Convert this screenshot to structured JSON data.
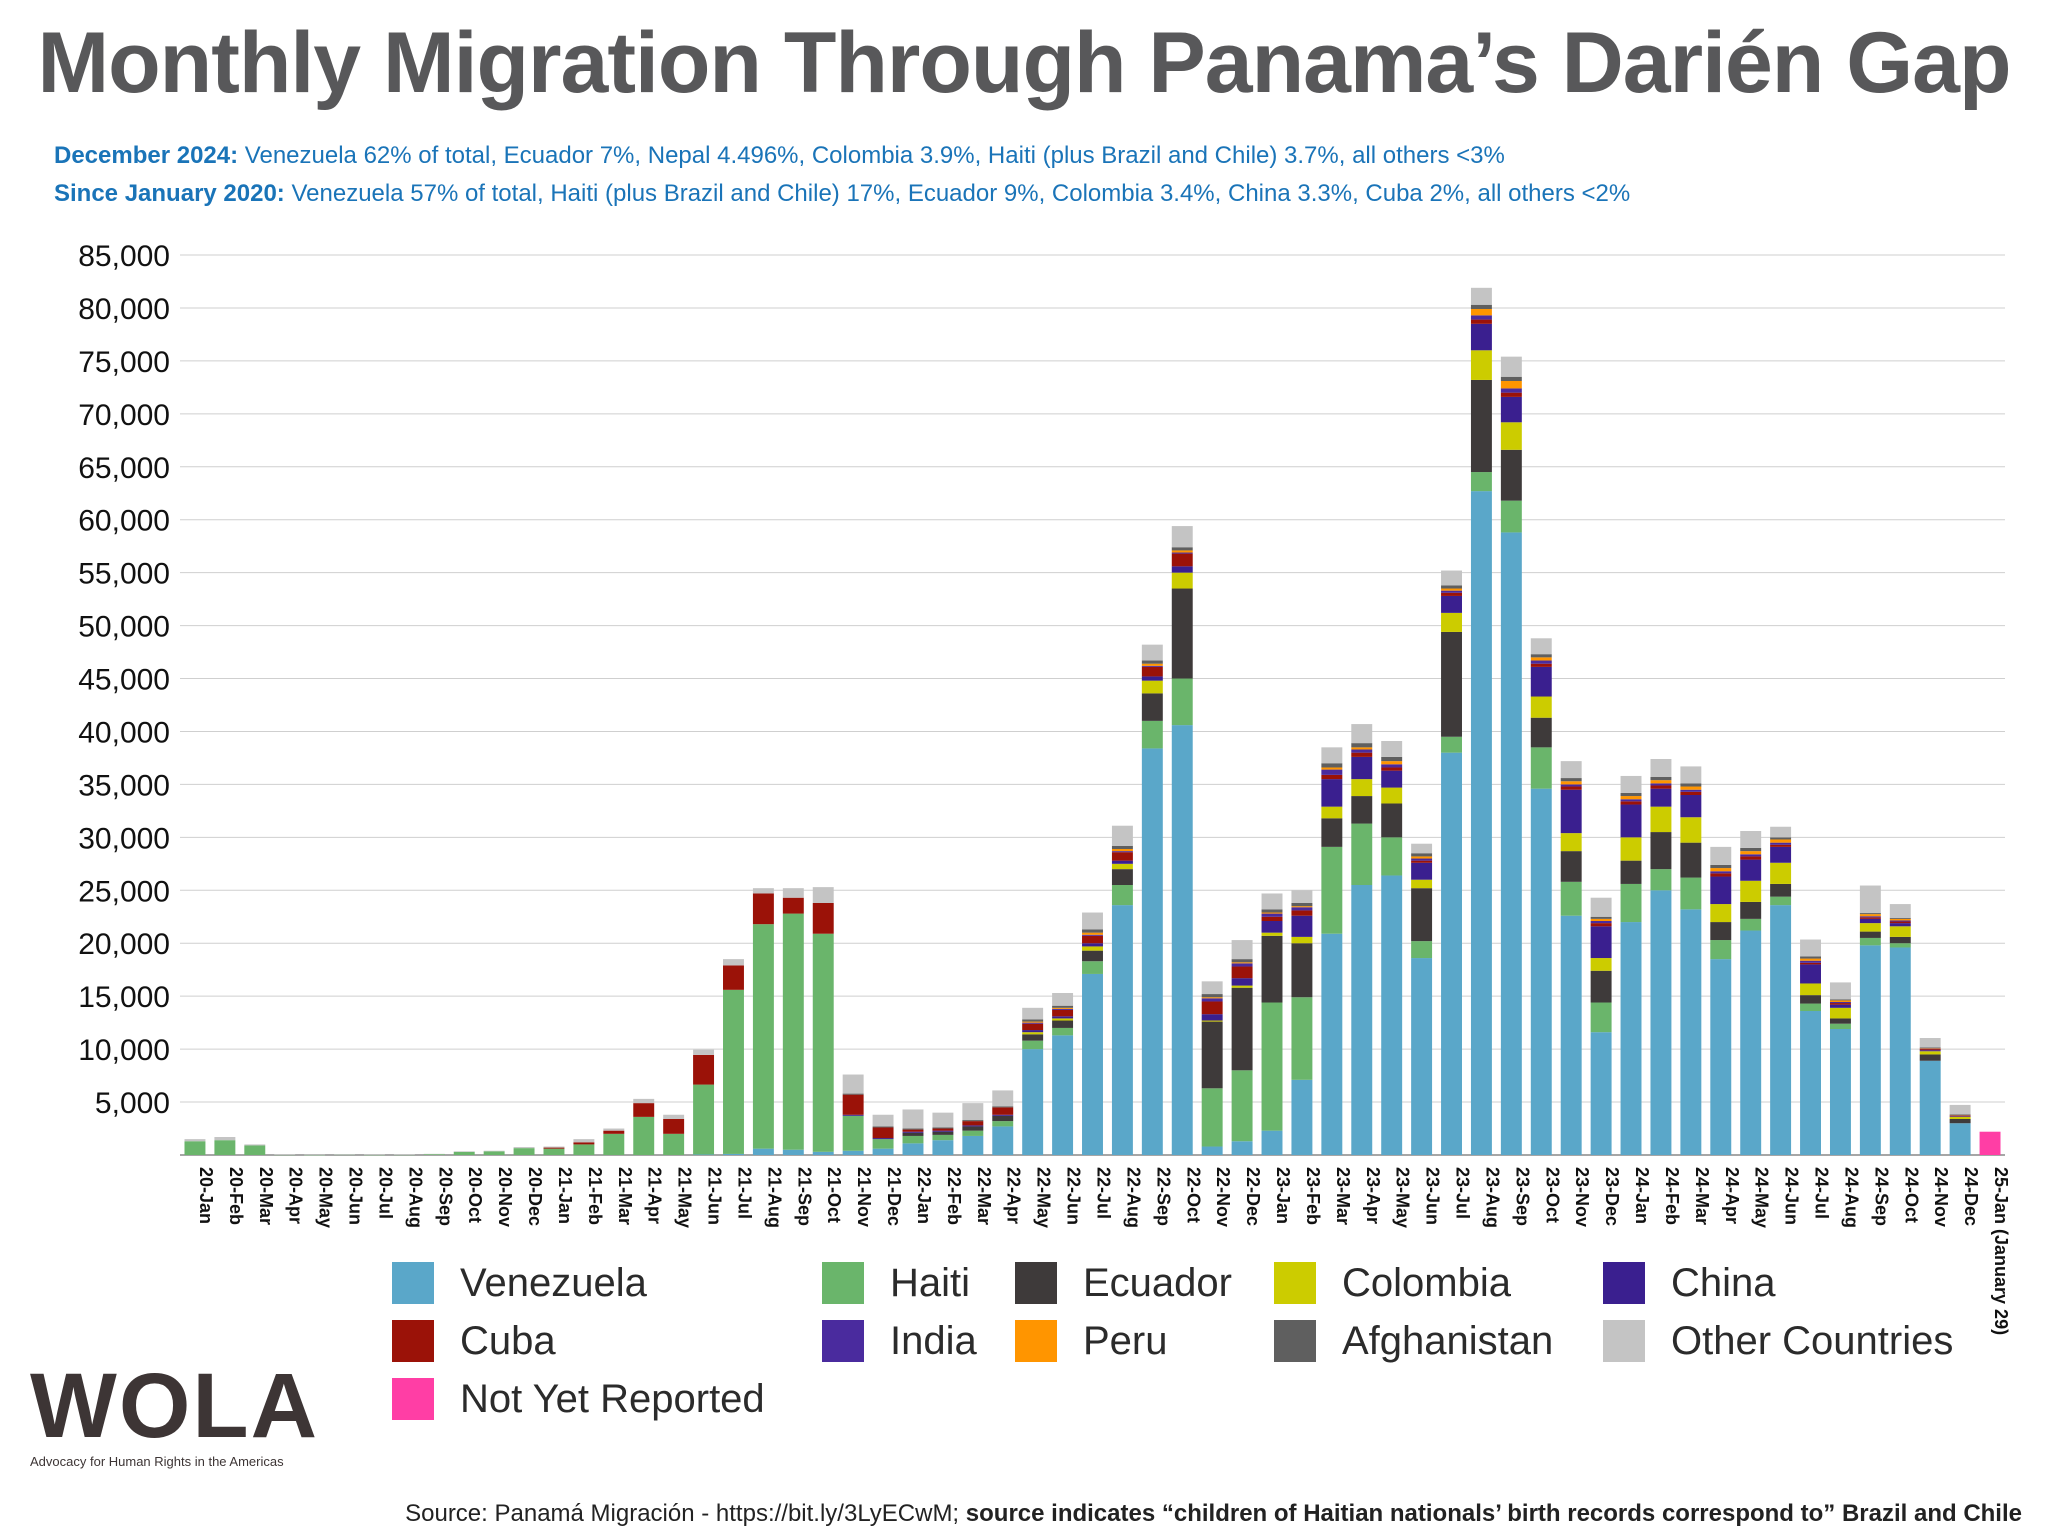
{
  "title": "Monthly Migration Through Panama’s Darién Gap",
  "subtitle1": {
    "label": "December 2024:",
    "text": " Venezuela 62% of total, Ecuador 7%, Nepal 4.496%, Colombia 3.9%, Haiti (plus Brazil and Chile) 3.7%, all others <3%"
  },
  "subtitle2": {
    "label": "Since January 2020:",
    "text": " Venezuela 57% of total, Haiti (plus Brazil and Chile) 17%, Ecuador 9%, Colombia 3.4%, China 3.3%, Cuba 2%, all others <2%"
  },
  "source": {
    "prefix": "Source: Panamá Migración - https://bit.ly/3LyECwM; ",
    "bold": "source indicates “children of Haitian nationals’ birth records correspond to” Brazil and Chile"
  },
  "logo": {
    "word": "WOLA",
    "tagline": "Advocacy for Human Rights in the Americas"
  },
  "chart_data": {
    "type": "bar",
    "stacked": true,
    "grid": true,
    "legend_position": "bottom",
    "ylim": [
      0,
      85000
    ],
    "yticks": [
      "5,000",
      "10,000",
      "15,000",
      "20,000",
      "25,000",
      "30,000",
      "35,000",
      "40,000",
      "45,000",
      "50,000",
      "55,000",
      "60,000",
      "65,000",
      "70,000",
      "75,000",
      "80,000",
      "85,000"
    ],
    "ytick_values": [
      5000,
      10000,
      15000,
      20000,
      25000,
      30000,
      35000,
      40000,
      45000,
      50000,
      55000,
      60000,
      65000,
      70000,
      75000,
      80000,
      85000
    ],
    "categories": [
      "20-Jan",
      "20-Feb",
      "20-Mar",
      "20-Apr",
      "20-May",
      "20-Jun",
      "20-Jul",
      "20-Aug",
      "20-Sep",
      "20-Oct",
      "20-Nov",
      "20-Dec",
      "21-Jan",
      "21-Feb",
      "21-Mar",
      "21-Apr",
      "21-May",
      "21-Jun",
      "21-Jul",
      "21-Aug",
      "21-Sep",
      "21-Oct",
      "21-Nov",
      "21-Dec",
      "22-Jan",
      "22-Feb",
      "22-Mar",
      "22-Apr",
      "22-May",
      "22-Jun",
      "22-Jul",
      "22-Aug",
      "22-Sep",
      "22-Oct",
      "22-Nov",
      "22-Dec",
      "23-Jan",
      "23-Feb",
      "23-Mar",
      "23-Apr",
      "23-May",
      "23-Jun",
      "23-Jul",
      "23-Aug",
      "23-Sep",
      "23-Oct",
      "23-Nov",
      "23-Dec",
      "24-Jan",
      "24-Feb",
      "24-Mar",
      "24-Apr",
      "24-May",
      "24-Jun",
      "24-Jul",
      "24-Aug",
      "24-Sep",
      "24-Oct",
      "24-Nov",
      "24-Dec",
      "25-Jan (January 29)"
    ],
    "series": [
      {
        "name": "Venezuela",
        "color": "#5aa7c9",
        "values": [
          0,
          0,
          0,
          0,
          0,
          0,
          0,
          0,
          0,
          0,
          0,
          0,
          0,
          0,
          0,
          0,
          0,
          50,
          100,
          600,
          500,
          300,
          400,
          600,
          1100,
          1400,
          1800,
          2700,
          10000,
          11300,
          17100,
          23600,
          38400,
          40600,
          800,
          1300,
          2300,
          7100,
          20900,
          25500,
          26400,
          18600,
          38000,
          62700,
          58800,
          34600,
          22600,
          11600,
          22000,
          25000,
          23200,
          18500,
          21200,
          23600,
          13600,
          11900,
          19800,
          19600,
          8900,
          3000,
          0
        ]
      },
      {
        "name": "Haiti",
        "color": "#6ab56b",
        "values": [
          1300,
          1400,
          900,
          30,
          10,
          40,
          20,
          30,
          90,
          300,
          350,
          650,
          600,
          1000,
          2000,
          3600,
          2000,
          6600,
          15500,
          21200,
          22300,
          20600,
          3300,
          900,
          700,
          500,
          500,
          500,
          800,
          700,
          1200,
          1900,
          2600,
          4400,
          5500,
          6700,
          12100,
          7800,
          8200,
          5800,
          3600,
          1600,
          1500,
          1800,
          3000,
          3900,
          3200,
          2800,
          3600,
          2000,
          3000,
          1800,
          1100,
          800,
          700,
          500,
          700,
          400,
          0,
          0,
          0
        ]
      },
      {
        "name": "Ecuador",
        "color": "#3e3a3a",
        "values": [
          0,
          0,
          0,
          0,
          0,
          0,
          0,
          0,
          0,
          0,
          0,
          0,
          0,
          0,
          0,
          0,
          0,
          0,
          0,
          0,
          0,
          0,
          0,
          0,
          300,
          300,
          400,
          500,
          600,
          700,
          1000,
          1500,
          2600,
          8500,
          6300,
          7800,
          6300,
          5100,
          2700,
          2600,
          3200,
          5000,
          9900,
          8700,
          4800,
          2800,
          2900,
          3000,
          2200,
          3500,
          3300,
          1700,
          1600,
          1200,
          800,
          500,
          600,
          600,
          600,
          400,
          0
        ]
      },
      {
        "name": "Colombia",
        "color": "#cccc00",
        "values": [
          0,
          0,
          0,
          0,
          0,
          0,
          0,
          0,
          0,
          0,
          0,
          0,
          0,
          0,
          0,
          0,
          0,
          0,
          0,
          0,
          0,
          0,
          0,
          0,
          0,
          0,
          0,
          0,
          200,
          200,
          400,
          500,
          1200,
          1500,
          100,
          200,
          300,
          600,
          1100,
          1600,
          1500,
          800,
          1800,
          2800,
          2600,
          2000,
          1700,
          1200,
          2200,
          2400,
          2400,
          1700,
          2000,
          2000,
          1100,
          1000,
          800,
          1000,
          300,
          200,
          0
        ]
      },
      {
        "name": "China",
        "color": "#3a1f8f",
        "values": [
          0,
          0,
          0,
          0,
          0,
          0,
          0,
          0,
          0,
          0,
          0,
          0,
          0,
          0,
          0,
          0,
          0,
          0,
          0,
          0,
          0,
          0,
          100,
          100,
          100,
          100,
          100,
          100,
          200,
          200,
          300,
          300,
          400,
          600,
          600,
          700,
          1100,
          2000,
          2600,
          2100,
          1600,
          1600,
          1600,
          2500,
          2400,
          2800,
          4100,
          3000,
          3100,
          1700,
          2100,
          2600,
          2000,
          1500,
          1800,
          300,
          400,
          300,
          100,
          50,
          0
        ]
      },
      {
        "name": "Cuba",
        "color": "#9b1208",
        "values": [
          0,
          0,
          0,
          0,
          0,
          0,
          0,
          0,
          0,
          0,
          0,
          0,
          100,
          200,
          300,
          1300,
          1400,
          2800,
          2300,
          2900,
          1500,
          2900,
          1900,
          1000,
          200,
          200,
          400,
          700,
          600,
          600,
          700,
          800,
          900,
          1200,
          1200,
          1100,
          400,
          500,
          400,
          400,
          300,
          200,
          300,
          400,
          400,
          300,
          300,
          300,
          300,
          300,
          300,
          300,
          300,
          200,
          150,
          150,
          150,
          150,
          100,
          50,
          0
        ]
      },
      {
        "name": "India",
        "color": "#4a2b9e",
        "values": [
          0,
          0,
          0,
          0,
          0,
          0,
          0,
          0,
          0,
          0,
          0,
          0,
          0,
          0,
          0,
          0,
          0,
          0,
          0,
          0,
          0,
          0,
          0,
          0,
          0,
          0,
          0,
          0,
          100,
          100,
          100,
          100,
          100,
          100,
          300,
          300,
          300,
          300,
          500,
          300,
          300,
          200,
          200,
          400,
          400,
          300,
          200,
          200,
          200,
          200,
          200,
          200,
          200,
          200,
          200,
          100,
          100,
          100,
          50,
          30,
          0
        ]
      },
      {
        "name": "Peru",
        "color": "#ff9500",
        "values": [
          0,
          0,
          0,
          0,
          0,
          0,
          0,
          0,
          0,
          0,
          0,
          0,
          0,
          0,
          0,
          0,
          0,
          0,
          0,
          0,
          0,
          0,
          0,
          0,
          0,
          0,
          0,
          0,
          100,
          100,
          200,
          200,
          200,
          200,
          100,
          100,
          100,
          100,
          200,
          200,
          300,
          200,
          200,
          600,
          700,
          300,
          300,
          200,
          300,
          300,
          300,
          300,
          300,
          300,
          200,
          150,
          200,
          150,
          50,
          50,
          0
        ]
      },
      {
        "name": "Afghanistan",
        "color": "#5f5f5f",
        "values": [
          0,
          0,
          0,
          0,
          0,
          0,
          0,
          0,
          0,
          0,
          0,
          0,
          0,
          0,
          0,
          0,
          0,
          0,
          0,
          0,
          0,
          0,
          100,
          100,
          100,
          100,
          100,
          100,
          200,
          200,
          300,
          300,
          300,
          300,
          300,
          300,
          300,
          300,
          400,
          400,
          400,
          300,
          300,
          400,
          400,
          300,
          300,
          200,
          300,
          300,
          300,
          300,
          300,
          200,
          200,
          100,
          100,
          100,
          50,
          50,
          0
        ]
      },
      {
        "name": "Other Countries",
        "color": "#c4c4c4",
        "values": [
          200,
          300,
          100,
          20,
          20,
          20,
          20,
          20,
          20,
          50,
          50,
          100,
          100,
          300,
          200,
          400,
          400,
          500,
          600,
          500,
          900,
          1500,
          1800,
          1100,
          1800,
          1400,
          1600,
          1500,
          1100,
          1200,
          1600,
          1900,
          1500,
          2000,
          1200,
          1800,
          1500,
          1200,
          1500,
          1800,
          1500,
          900,
          1400,
          1600,
          1900,
          1500,
          1600,
          1800,
          1600,
          1700,
          1600,
          1700,
          1600,
          1000,
          1600,
          1600,
          2600,
          1300,
          900,
          900,
          0
        ]
      },
      {
        "name": "Not Yet Reported",
        "color": "#ff3ea5",
        "values": [
          0,
          0,
          0,
          0,
          0,
          0,
          0,
          0,
          0,
          0,
          0,
          0,
          0,
          0,
          0,
          0,
          0,
          0,
          0,
          0,
          0,
          0,
          0,
          0,
          0,
          0,
          0,
          0,
          0,
          0,
          0,
          0,
          0,
          0,
          0,
          0,
          0,
          0,
          0,
          0,
          0,
          0,
          0,
          0,
          0,
          0,
          0,
          0,
          0,
          0,
          0,
          0,
          0,
          0,
          0,
          0,
          0,
          0,
          0,
          0,
          2200
        ]
      }
    ],
    "legend_order": [
      "Venezuela",
      "Haiti",
      "Ecuador",
      "Colombia",
      "China",
      "Cuba",
      "India",
      "Peru",
      "Afghanistan",
      "Other Countries",
      "Not Yet Reported"
    ]
  }
}
